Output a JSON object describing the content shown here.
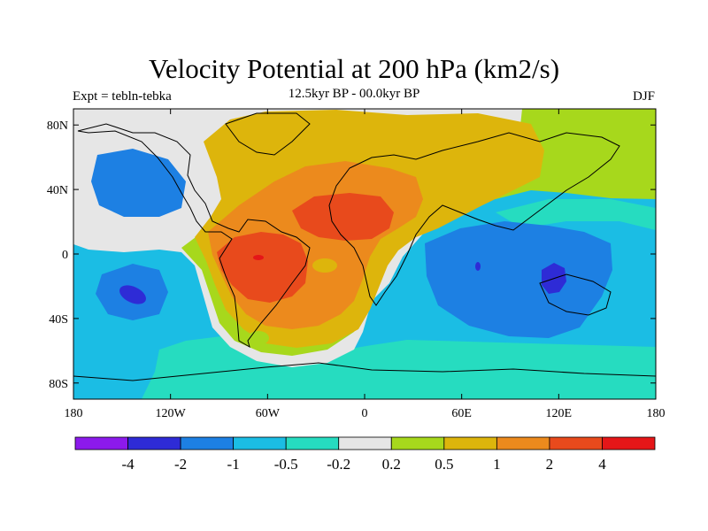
{
  "title": "Velocity Potential at 200 hPa (km2/s)",
  "subtitle": "12.5kyr BP - 00.0kyr BP",
  "left_label": "Expt = tebln-tebka",
  "right_label": "DJF",
  "map": {
    "projection": "cylindrical-equidistant",
    "lon_range": [
      -180,
      180
    ],
    "lat_range": [
      -90,
      90
    ],
    "lat_ticks": [
      {
        "value": 80,
        "label": "80N"
      },
      {
        "value": 40,
        "label": "40N"
      },
      {
        "value": 0,
        "label": "0"
      },
      {
        "value": -40,
        "label": "40S"
      },
      {
        "value": -80,
        "label": "80S"
      }
    ],
    "lon_ticks": [
      {
        "value": -180,
        "label": "180"
      },
      {
        "value": -120,
        "label": "120W"
      },
      {
        "value": -60,
        "label": "60W"
      },
      {
        "value": 0,
        "label": "0"
      },
      {
        "value": 60,
        "label": "60E"
      },
      {
        "value": 120,
        "label": "120E"
      },
      {
        "value": 180,
        "label": "180"
      }
    ],
    "coastlines": true
  },
  "colorbar": {
    "orientation": "horizontal",
    "colors": [
      "#8c1aec",
      "#2e2bd6",
      "#1d80e3",
      "#1bbde4",
      "#26dcc0",
      "#e6e6e6",
      "#a7d81c",
      "#ddb50c",
      "#ec8a1d",
      "#e84a1c",
      "#e51618"
    ],
    "labels": [
      "-4",
      "-2",
      "-1",
      "-0.5",
      "-0.2",
      "0.2",
      "0.5",
      "1",
      "2",
      "4"
    ]
  }
}
